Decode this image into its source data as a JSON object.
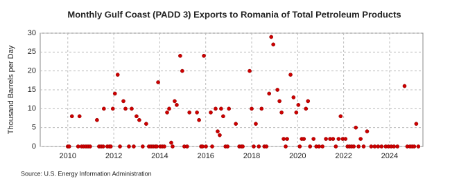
{
  "chart_data": {
    "type": "scatter",
    "title": "Monthly Gulf Coast (PADD 3) Exports to Romania of Total Petroleum Products",
    "y_label": "Thousand Barrels per Day",
    "source": "Source: U.S. Energy Information Administration",
    "xlim": [
      2008.8,
      2025.45
    ],
    "xticks": [
      2010,
      2012,
      2014,
      2016,
      2018,
      2020,
      2022,
      2024
    ],
    "ylim": [
      0,
      30
    ],
    "yticks": [
      0,
      5,
      10,
      15,
      20,
      25,
      30
    ],
    "grid": true,
    "series": [
      {
        "name": "Exports",
        "color": "#cc0000",
        "x": [
          2010.0,
          2010.06,
          2010.18,
          2010.45,
          2010.51,
          2010.6,
          2010.69,
          2010.79,
          2010.88,
          2010.97,
          2011.27,
          2011.36,
          2011.45,
          2011.54,
          2011.57,
          2011.72,
          2011.81,
          2011.87,
          2011.96,
          2012.05,
          2012.17,
          2012.27,
          2012.42,
          2012.51,
          2012.66,
          2012.78,
          2012.87,
          2012.99,
          2013.11,
          2013.26,
          2013.41,
          2013.53,
          2013.62,
          2013.71,
          2013.81,
          2013.87,
          2013.93,
          2014.02,
          2014.11,
          2014.2,
          2014.32,
          2014.41,
          2014.5,
          2014.56,
          2014.65,
          2014.74,
          2014.89,
          2014.98,
          2015.07,
          2015.19,
          2015.29,
          2015.62,
          2015.71,
          2015.8,
          2015.86,
          2015.92,
          2016.01,
          2016.22,
          2016.28,
          2016.43,
          2016.52,
          2016.61,
          2016.67,
          2016.76,
          2016.86,
          2016.95,
          2017.01,
          2017.31,
          2017.46,
          2017.55,
          2017.61,
          2017.91,
          2018.0,
          2018.09,
          2018.18,
          2018.31,
          2018.43,
          2018.55,
          2018.64,
          2018.76,
          2018.85,
          2018.94,
          2019.12,
          2019.21,
          2019.3,
          2019.39,
          2019.48,
          2019.54,
          2019.69,
          2019.82,
          2019.94,
          2020.03,
          2020.09,
          2020.18,
          2020.27,
          2020.36,
          2020.45,
          2020.54,
          2020.69,
          2020.81,
          2020.93,
          2021.08,
          2021.23,
          2021.41,
          2021.54,
          2021.66,
          2021.78,
          2021.87,
          2021.96,
          2022.08,
          2022.17,
          2022.26,
          2022.35,
          2022.44,
          2022.53,
          2022.65,
          2022.74,
          2022.87,
          2023.02,
          2023.2,
          2023.35,
          2023.5,
          2023.65,
          2023.83,
          2023.95,
          2024.07,
          2024.19,
          2024.34,
          2024.65,
          2024.77,
          2024.89,
          2024.98,
          2025.07,
          2025.16,
          2025.25
        ],
        "values": [
          0,
          0,
          8,
          0,
          8,
          0,
          0,
          0,
          0,
          0,
          7,
          0,
          0,
          0,
          10,
          0,
          0,
          0,
          10,
          14,
          19,
          0,
          12,
          10,
          0,
          10,
          0,
          8,
          7,
          0,
          6,
          0,
          0,
          0,
          0,
          0,
          17,
          0,
          0,
          0,
          9,
          10,
          1,
          0,
          12,
          11,
          24,
          20,
          0,
          0,
          9,
          9,
          7,
          0,
          0,
          24,
          0,
          9,
          0,
          10,
          4,
          3,
          10,
          8,
          0,
          0,
          10,
          6,
          0,
          0,
          0,
          20,
          10,
          0,
          6,
          0,
          10,
          0,
          0,
          14,
          29,
          27,
          15,
          12,
          9,
          2,
          0,
          2,
          19,
          13,
          9,
          11,
          0,
          2,
          2,
          10,
          12,
          0,
          2,
          0,
          0,
          0,
          2,
          2,
          2,
          0,
          2,
          8,
          2,
          2,
          0,
          0,
          0,
          0,
          5,
          0,
          2,
          0,
          4,
          0,
          0,
          0,
          0,
          0,
          0,
          0,
          0,
          0,
          16,
          0,
          0,
          0,
          0,
          6,
          0
        ]
      }
    ]
  }
}
